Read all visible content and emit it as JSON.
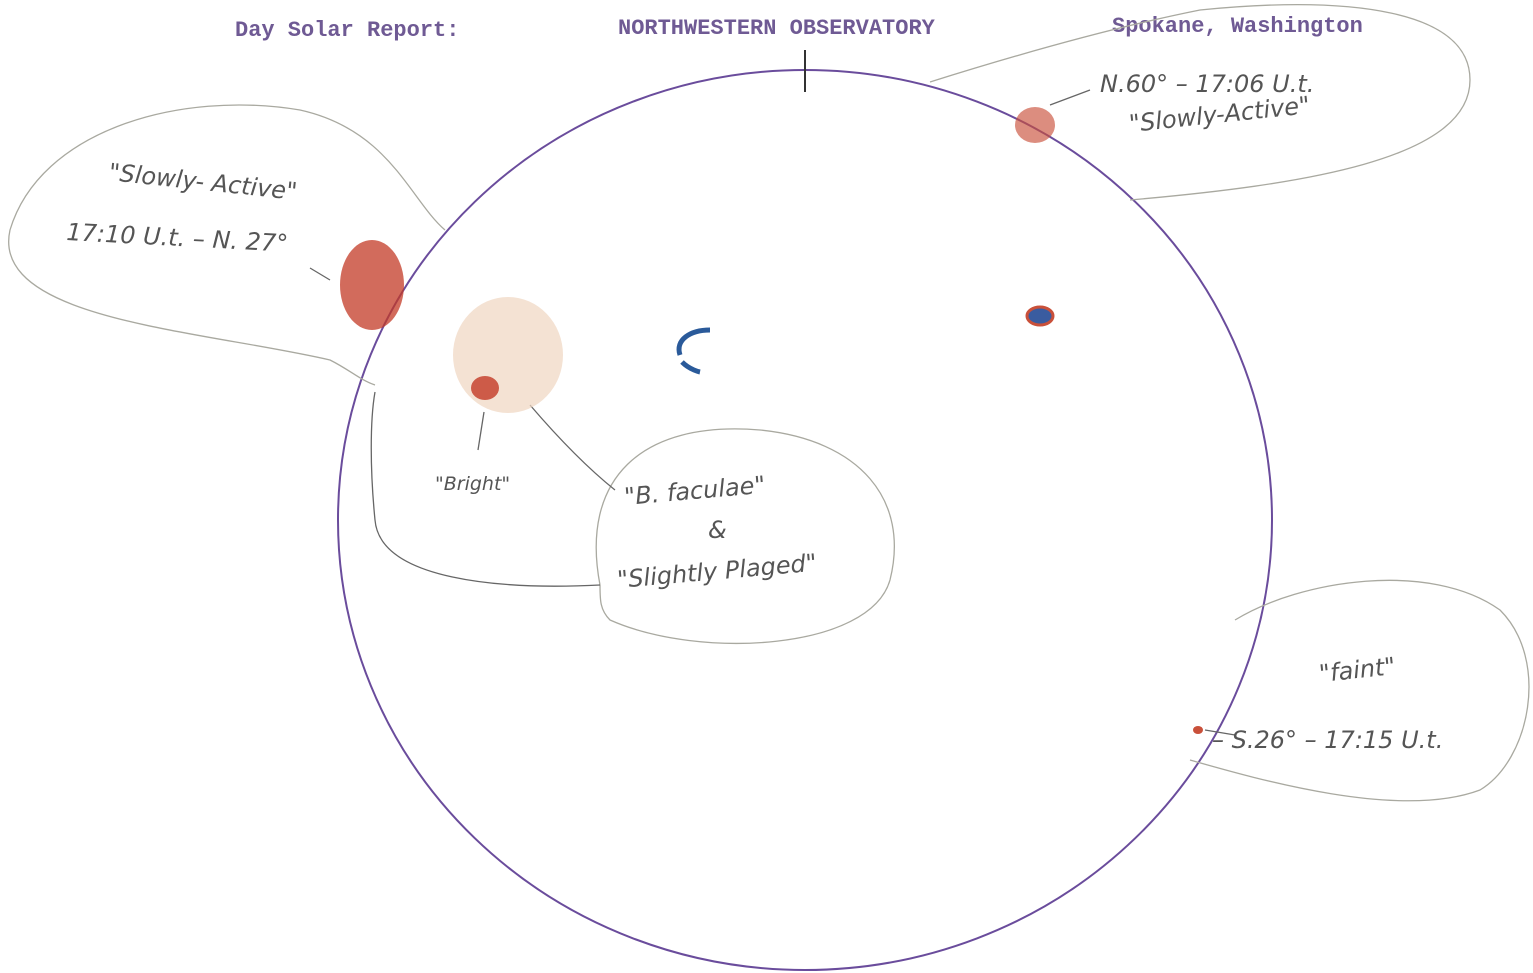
{
  "header": {
    "title": "Day Solar Report:",
    "observatory": "NORTHWESTERN OBSERVATORY",
    "location": "Spokane, Washington"
  },
  "annotations": [
    {
      "lines": [
        "N.60° – 17:06 U.t.",
        "\"Slowly-Active\""
      ]
    },
    {
      "lines": [
        "\"Slowly- Active\"",
        "17:10 U.t.  – N. 27°"
      ]
    },
    {
      "lines": [
        "\"Bright\""
      ]
    },
    {
      "lines": [
        "\"B. faculae\"",
        "&",
        "\"Slightly Plaged\""
      ]
    },
    {
      "lines": [
        "\"faint\"",
        "– S.26° – 17:15 U.t."
      ]
    }
  ]
}
